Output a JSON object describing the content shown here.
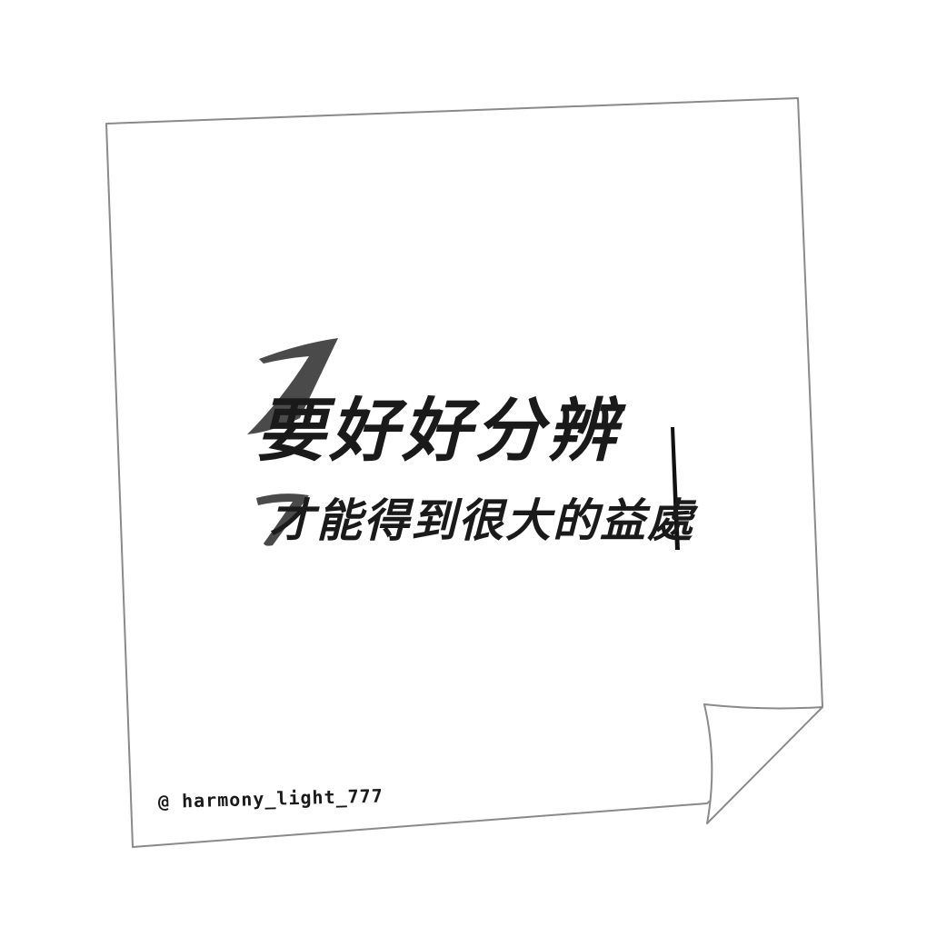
{
  "note": {
    "line1": "要好好分辨",
    "line2": "才能得到很大的益處",
    "signature": "@ harmony_light_777"
  },
  "colors": {
    "background": "#ffffff",
    "paper_outline": "#8a8a8a",
    "ink": "#1a1a1a"
  }
}
